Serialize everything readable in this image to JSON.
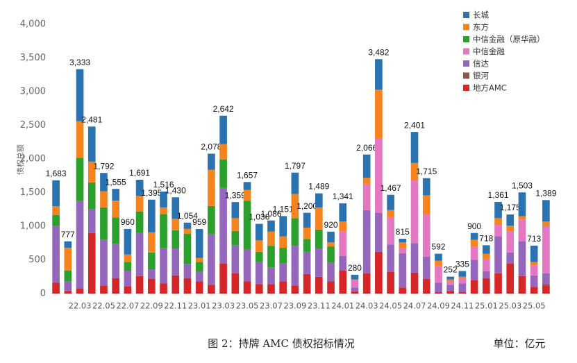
{
  "chart_data": {
    "type": "stacked-bar",
    "y_label": "债权总额",
    "caption": "图 2：持牌 AMC 债权招标情况",
    "unit": "单位：亿元",
    "categories": [
      null,
      null,
      "22.03",
      null,
      "22.05",
      null,
      "22.07",
      null,
      "22.09",
      null,
      "22.11",
      null,
      "23.01",
      null,
      "23.03",
      null,
      "23.05",
      null,
      "23.07",
      null,
      "23.09",
      null,
      "23.11",
      null,
      "24.01",
      null,
      "24.03",
      null,
      "24.05",
      null,
      "24.07",
      null,
      "24.09",
      null,
      "24.11",
      null,
      "25.01",
      null,
      "25.03",
      null,
      "25.05",
      null
    ],
    "ylim": [
      0,
      4000
    ],
    "yticks": [
      0,
      {
        "value": 500,
        "label": "500"
      },
      {
        "value": 1000,
        "label": "1,000"
      },
      {
        "value": 1500,
        "label": "1,500"
      },
      {
        "value": 2000,
        "label": "2,000"
      },
      {
        "value": 2500,
        "label": "2,500"
      },
      {
        "value": 3000,
        "label": "3,000"
      },
      {
        "value": 3500,
        "label": "3,500"
      },
      {
        "value": 4000,
        "label": "4,000"
      }
    ],
    "series": [
      {
        "name": "地方AMC",
        "color": "#d62728",
        "values": [
          160,
          40,
          80,
          900,
          120,
          230,
          110,
          260,
          220,
          150,
          270,
          230,
          180,
          130,
          450,
          300,
          180,
          140,
          140,
          180,
          120,
          290,
          250,
          180,
          340,
          30,
          300,
          620,
          320,
          90,
          310,
          220,
          20,
          40,
          20,
          200,
          230,
          300,
          450,
          260,
          100,
          120
        ]
      },
      {
        "name": "银河",
        "color": "#8c564b",
        "values": [
          0,
          0,
          0,
          0,
          0,
          0,
          0,
          0,
          0,
          0,
          0,
          0,
          0,
          0,
          0,
          0,
          0,
          0,
          0,
          0,
          0,
          0,
          0,
          0,
          0,
          0,
          0,
          0,
          0,
          0,
          0,
          0,
          0,
          0,
          0,
          0,
          0,
          0,
          0,
          0,
          0,
          20
        ]
      },
      {
        "name": "信达",
        "color": "#9467bd",
        "values": [
          850,
          145,
          1295,
          350,
          680,
          510,
          230,
          640,
          140,
          530,
          400,
          210,
          150,
          750,
          1120,
          420,
          480,
          330,
          250,
          270,
          590,
          330,
          420,
          280,
          220,
          60,
          940,
          580,
          410,
          510,
          440,
          330,
          140,
          90,
          130,
          300,
          100,
          550,
          160,
          520,
          170,
          160
        ]
      },
      {
        "name": "中信金融",
        "color": "#e377c2",
        "values": [
          0,
          0,
          0,
          0,
          0,
          0,
          0,
          0,
          0,
          0,
          0,
          0,
          0,
          0,
          0,
          0,
          0,
          0,
          0,
          0,
          0,
          0,
          0,
          0,
          360,
          110,
          380,
          1100,
          400,
          80,
          930,
          630,
          250,
          50,
          70,
          200,
          180,
          170,
          320,
          320,
          150,
          700
        ]
      },
      {
        "name": "中信金融（原华融）",
        "color": "#2ca02c",
        "values": [
          155,
          155,
          640,
          400,
          480,
          390,
          130,
          320,
          250,
          500,
          270,
          450,
          140,
          420,
          420,
          210,
          720,
          150,
          320,
          230,
          410,
          190,
          280,
          240,
          0,
          0,
          0,
          0,
          0,
          0,
          0,
          0,
          0,
          0,
          0,
          0,
          0,
          0,
          0,
          0,
          0,
          0
        ]
      },
      {
        "name": "东方",
        "color": "#f5841f",
        "values": [
          133,
          340,
          545,
          310,
          240,
          250,
          110,
          230,
          300,
          100,
          170,
          70,
          60,
          540,
          230,
          190,
          160,
          170,
          210,
          170,
          360,
          170,
          330,
          60,
          150,
          10,
          100,
          730,
          110,
          80,
          260,
          280,
          80,
          30,
          30,
          100,
          80,
          100,
          80,
          50,
          50,
          70
        ]
      },
      {
        "name": "长城",
        "color": "#2b73b0",
        "values": [
          385,
          97,
          773,
          521,
          272,
          175,
          380,
          241,
          485,
          236,
          320,
          94,
          429,
          238,
          422,
          239,
          117,
          246,
          166,
          301,
          317,
          220,
          209,
          160,
          271,
          70,
          346,
          452,
          227,
          55,
          461,
          255,
          102,
          42,
          85,
          100,
          128,
          241,
          165,
          353,
          243,
          319
        ]
      }
    ],
    "totals": {
      "values": [
        1683,
        777,
        3333,
        2481,
        1792,
        1555,
        960,
        1691,
        1395,
        1516,
        1430,
        1054,
        959,
        2078,
        2642,
        1359,
        1657,
        1036,
        1086,
        1151,
        1797,
        1200,
        1489,
        920,
        1341,
        280,
        2066,
        3482,
        1467,
        815,
        2401,
        1715,
        592,
        252,
        335,
        900,
        718,
        1361,
        1175,
        1503,
        713,
        1389
      ],
      "value_labels": [
        "1,683",
        "777",
        "3,333",
        "2,481",
        "1,792",
        "1,555",
        "960",
        "1,691",
        "1,395",
        "1,516",
        "1,430",
        "1,054",
        "959",
        "2,078",
        "2,642",
        "1,359",
        "1,657",
        "1,036",
        "1,086",
        "1,151",
        "1,797",
        "1,200",
        "1,489",
        "920",
        "1,341",
        "280",
        "2,066",
        "3,482",
        "1,467",
        "815",
        "2,401",
        "1,715",
        "592",
        "252",
        "335",
        "900",
        "718",
        "1,361",
        "1,175",
        "1,503",
        "713",
        "1,389"
      ]
    }
  }
}
